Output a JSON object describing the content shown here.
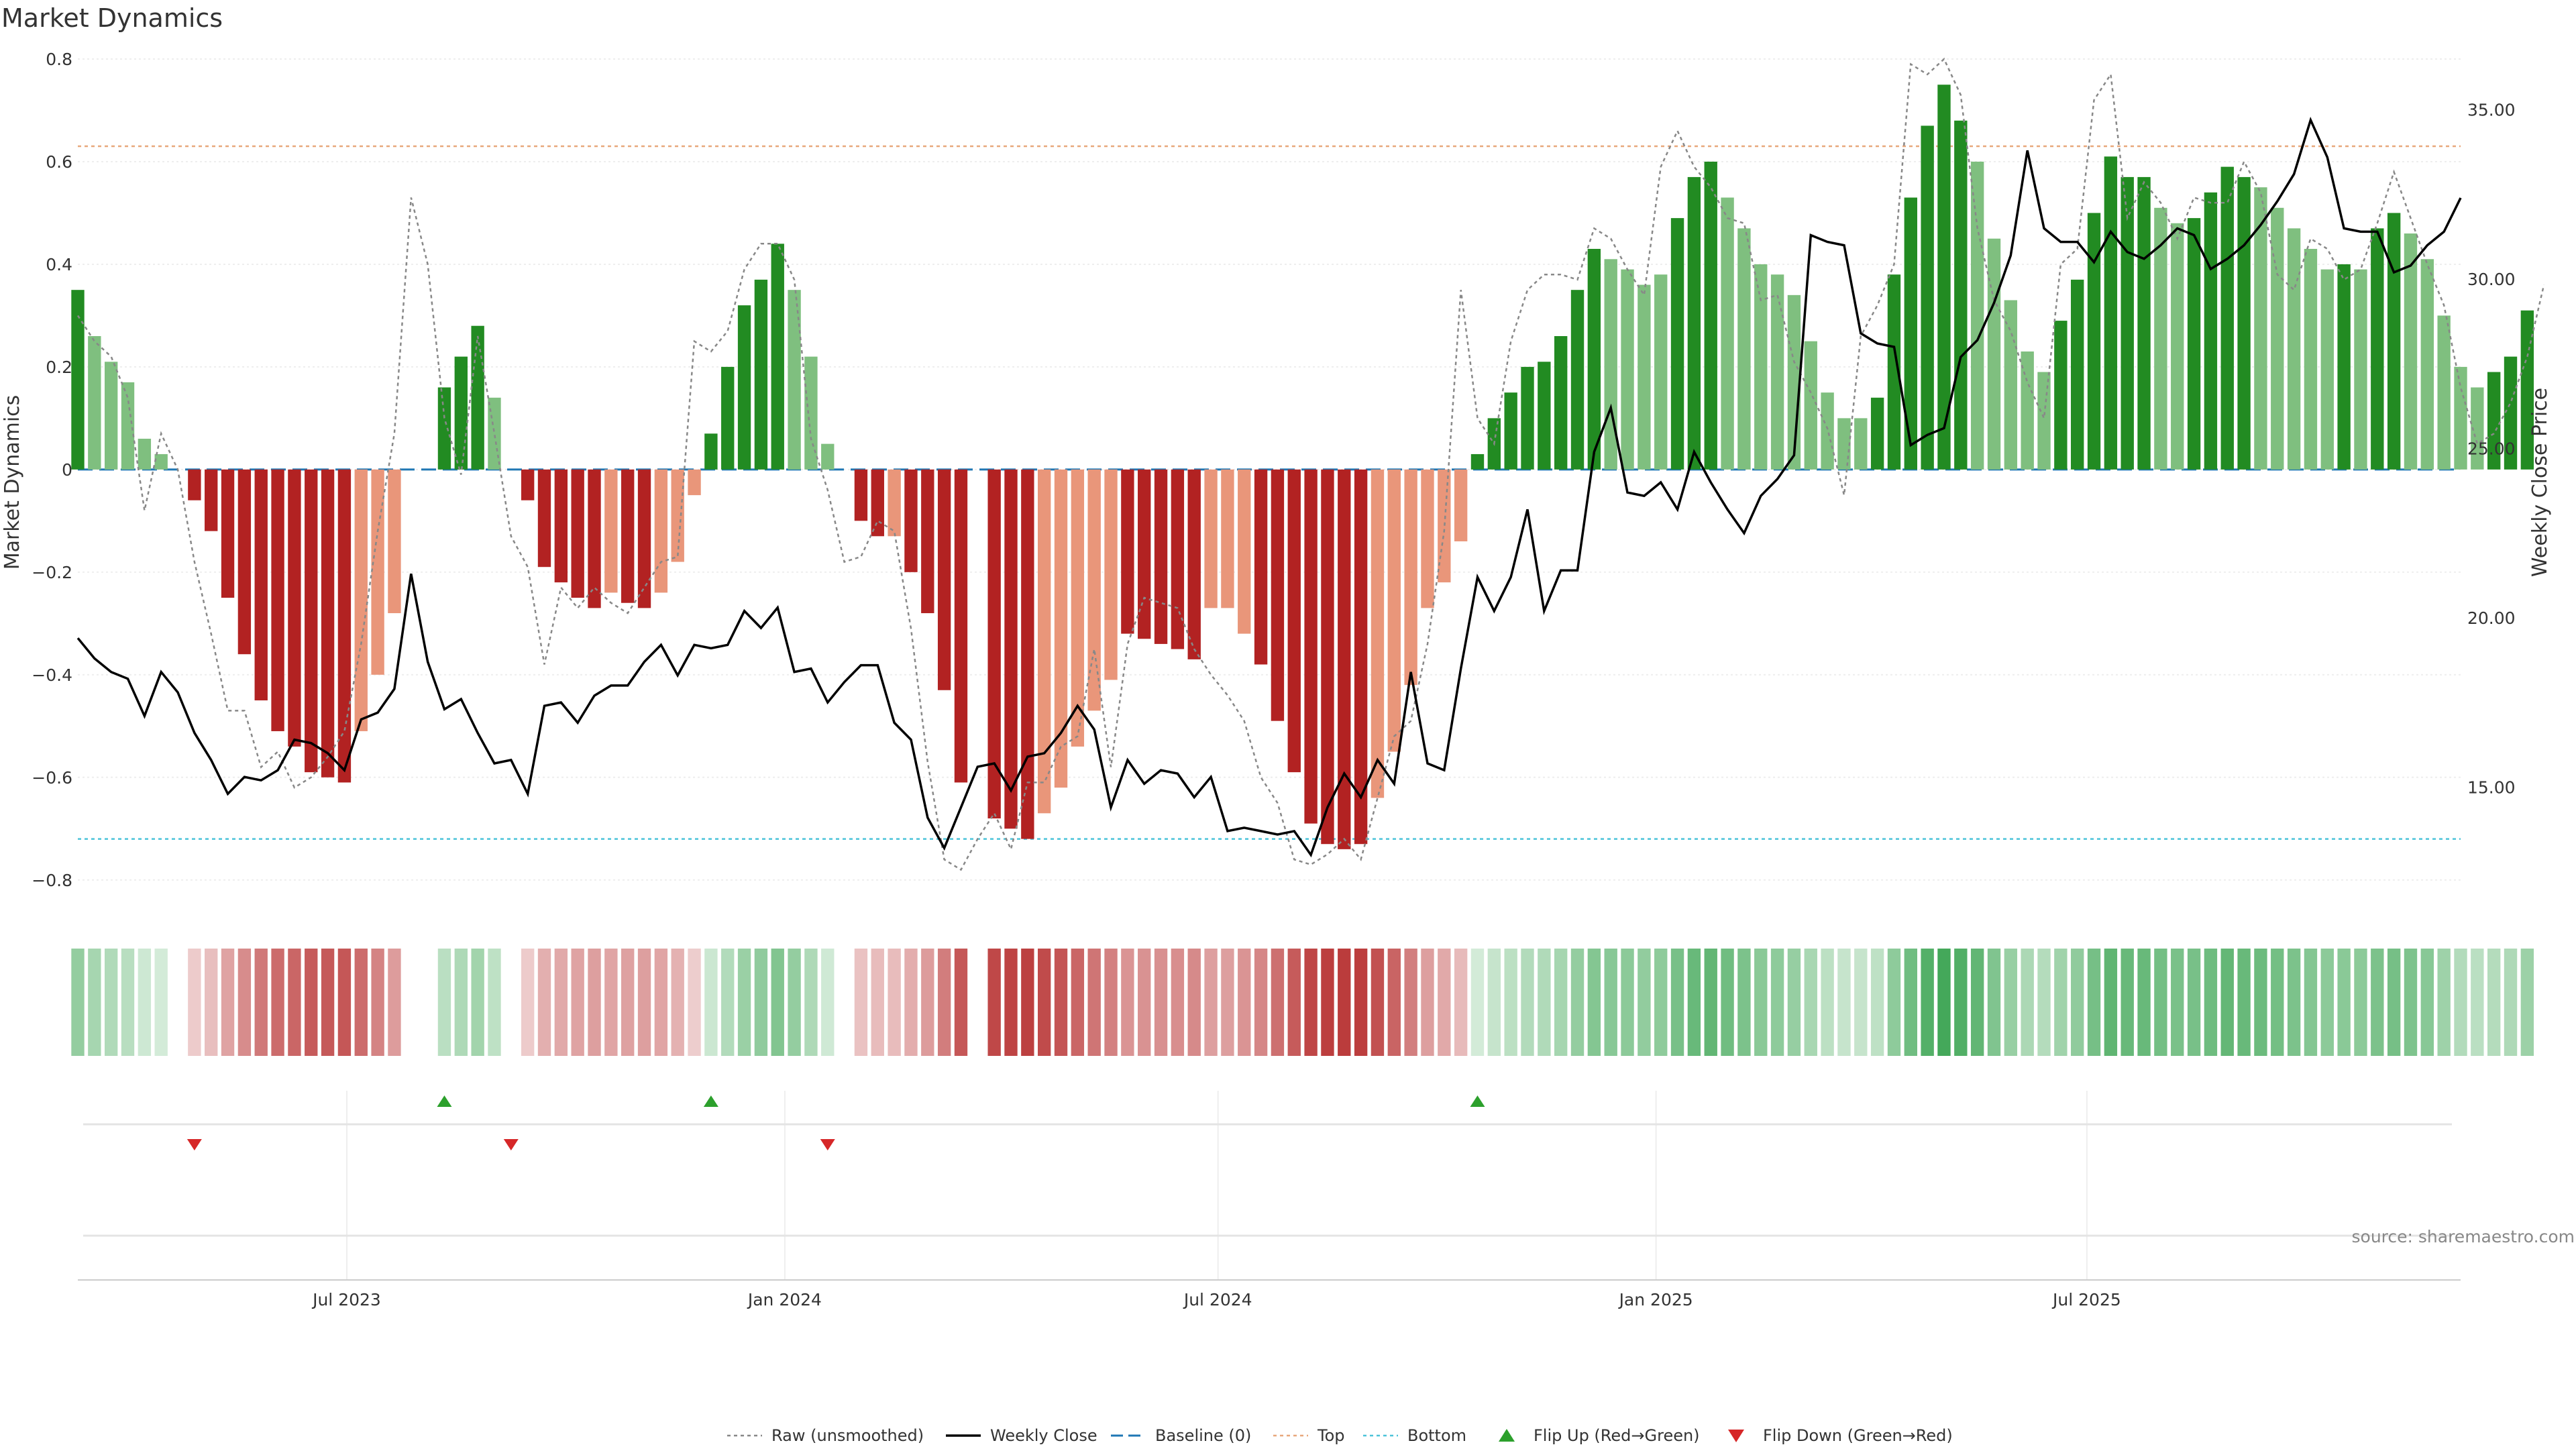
{
  "colors": {
    "green_strong": "#228b22",
    "green_light": "#7fbf7f",
    "red_strong": "#b22222",
    "red_light": "#e9967a",
    "close_line": "#000000",
    "raw_line": "#888888",
    "baseline": "#1f77b4",
    "top_line": "#e8a87c",
    "bottom_line": "#4cc3d9",
    "flip_up": "#2ca02c",
    "flip_down": "#d62728"
  },
  "chart_data": {
    "type": "bar",
    "title": "Market Dynamics",
    "ylabel": "Market Dynamics",
    "ylabel_right": "Weekly Close Price",
    "ylim": [
      -0.85,
      0.8
    ],
    "ylim_right": [
      11.5,
      36.5
    ],
    "yticks": [
      "0.8",
      "0.6",
      "0.4",
      "0.2",
      "0",
      "−0.2",
      "−0.4",
      "−0.6",
      "−0.8"
    ],
    "ytick_values": [
      0.8,
      0.6,
      0.4,
      0.2,
      0,
      -0.2,
      -0.4,
      -0.6,
      -0.8
    ],
    "yticks_right": [
      "35.00",
      "30.00",
      "25.00",
      "20.00",
      "15.00"
    ],
    "ytick_right_values": [
      35,
      30,
      25,
      20,
      15
    ],
    "x_start": "2023-03-10",
    "x_step_days": 7,
    "xticks": [
      {
        "label": "Jul 2023",
        "date": "2023-07-01"
      },
      {
        "label": "Jan 2024",
        "date": "2024-01-01"
      },
      {
        "label": "Jul 2024",
        "date": "2024-07-01"
      },
      {
        "label": "Jan 2025",
        "date": "2025-01-01"
      },
      {
        "label": "Jul 2025",
        "date": "2025-07-01"
      }
    ],
    "x_end": "2025-12-05",
    "top_threshold": 0.63,
    "bottom_threshold": -0.72,
    "baseline": 0,
    "series": [
      {
        "name": "Market Dynamics",
        "values": [
          0.35,
          0.26,
          0.21,
          0.17,
          0.06,
          0.03,
          0,
          -0.06,
          -0.12,
          -0.25,
          -0.36,
          -0.45,
          -0.51,
          -0.54,
          -0.59,
          -0.6,
          -0.61,
          -0.51,
          -0.4,
          -0.28,
          0,
          0,
          0.16,
          0.22,
          0.28,
          0.14,
          0,
          -0.06,
          -0.19,
          -0.22,
          -0.25,
          -0.27,
          -0.24,
          -0.26,
          -0.27,
          -0.24,
          -0.18,
          -0.05,
          0.07,
          0.2,
          0.32,
          0.37,
          0.44,
          0.35,
          0.22,
          0.05,
          0,
          -0.1,
          -0.13,
          -0.13,
          -0.2,
          -0.28,
          -0.43,
          -0.61,
          0,
          -0.68,
          -0.7,
          -0.72,
          -0.67,
          -0.62,
          -0.54,
          -0.47,
          -0.41,
          -0.32,
          -0.33,
          -0.34,
          -0.35,
          -0.37,
          -0.27,
          -0.27,
          -0.32,
          -0.38,
          -0.49,
          -0.59,
          -0.69,
          -0.73,
          -0.74,
          -0.73,
          -0.64,
          -0.55,
          -0.42,
          -0.27,
          -0.22,
          -0.14,
          0.03,
          0.1,
          0.15,
          0.2,
          0.21,
          0.26,
          0.35,
          0.43,
          0.41,
          0.39,
          0.36,
          0.38,
          0.49,
          0.57,
          0.6,
          0.53,
          0.47,
          0.4,
          0.38,
          0.34,
          0.25,
          0.15,
          0.1,
          0.1,
          0.14,
          0.38,
          0.53,
          0.67,
          0.75,
          0.68,
          0.6,
          0.45,
          0.33,
          0.23,
          0.19,
          0.29,
          0.37,
          0.5,
          0.61,
          0.57,
          0.57,
          0.51,
          0.48,
          0.49,
          0.54,
          0.59,
          0.57,
          0.55,
          0.51,
          0.47,
          0.43,
          0.39,
          0.4,
          0.39,
          0.47,
          0.5,
          0.46,
          0.41,
          0.3,
          0.2,
          0.16,
          0.19,
          0.22,
          0.31
        ],
        "strong": [
          1,
          0,
          0,
          0,
          0,
          0,
          0,
          1,
          1,
          1,
          1,
          1,
          1,
          1,
          1,
          1,
          1,
          0,
          0,
          0,
          0,
          0,
          1,
          1,
          1,
          0,
          0,
          1,
          1,
          1,
          1,
          1,
          0,
          1,
          1,
          0,
          0,
          0,
          1,
          1,
          1,
          1,
          1,
          0,
          0,
          0,
          0,
          1,
          1,
          0,
          1,
          1,
          1,
          1,
          0,
          1,
          1,
          1,
          0,
          0,
          0,
          0,
          0,
          1,
          1,
          1,
          1,
          1,
          0,
          0,
          0,
          1,
          1,
          1,
          1,
          1,
          1,
          1,
          0,
          0,
          0,
          0,
          0,
          0,
          1,
          1,
          1,
          1,
          1,
          1,
          1,
          1,
          0,
          0,
          0,
          0,
          1,
          1,
          1,
          0,
          0,
          0,
          0,
          0,
          0,
          0,
          0,
          0,
          1,
          1,
          1,
          1,
          1,
          1,
          0,
          0,
          0,
          0,
          0,
          1,
          1,
          1,
          1,
          1,
          1,
          0,
          0,
          1,
          1,
          1,
          1,
          0,
          0,
          0,
          0,
          0,
          1,
          0,
          1,
          1,
          0,
          0,
          0,
          0,
          0,
          1,
          1,
          1
        ]
      },
      {
        "name": "Weekly Close",
        "values": [
          19.4,
          18.8,
          18.4,
          18.2,
          17.1,
          18.4,
          17.8,
          16.6,
          15.8,
          14.8,
          15.3,
          15.2,
          15.5,
          16.4,
          16.3,
          16.0,
          15.5,
          17.0,
          17.2,
          17.9,
          21.3,
          18.7,
          17.3,
          17.6,
          16.6,
          15.7,
          15.8,
          14.8,
          17.4,
          17.5,
          16.9,
          17.7,
          18.0,
          18.0,
          18.7,
          19.2,
          18.3,
          19.2,
          19.1,
          19.2,
          20.2,
          19.7,
          20.3,
          18.4,
          18.5,
          17.5,
          18.1,
          18.6,
          18.6,
          16.9,
          16.4,
          14.1,
          13.2,
          14.4,
          15.6,
          15.7,
          14.9,
          15.9,
          16.0,
          16.6,
          17.4,
          16.7,
          14.4,
          15.8,
          15.1,
          15.5,
          15.4,
          14.7,
          15.3,
          13.7,
          13.8,
          13.7,
          13.6,
          13.7,
          13.0,
          14.4,
          15.4,
          14.7,
          15.8,
          15.1,
          18.4,
          15.7,
          15.5,
          18.5,
          21.2,
          20.2,
          21.2,
          23.2,
          20.2,
          21.4,
          21.4,
          24.9,
          26.2,
          23.7,
          23.6,
          24.0,
          23.2,
          24.9,
          24.0,
          23.2,
          22.5,
          23.6,
          24.1,
          24.8,
          31.3,
          31.1,
          31.0,
          28.4,
          28.1,
          28.0,
          25.1,
          25.4,
          25.6,
          27.7,
          28.2,
          29.3,
          30.7,
          33.8,
          31.5,
          31.1,
          31.1,
          30.5,
          31.4,
          30.8,
          30.6,
          31.0,
          31.5,
          31.3,
          30.3,
          30.6,
          31.0,
          31.6,
          32.3,
          33.1,
          34.7,
          33.6,
          31.5,
          31.4,
          31.4,
          30.2,
          30.4,
          31.0,
          31.4,
          32.4
        ]
      },
      {
        "name": "Raw (unsmoothed)",
        "values": [
          0.3,
          0.25,
          0.22,
          0.14,
          -0.08,
          0.07,
          0,
          -0.18,
          -0.32,
          -0.47,
          -0.47,
          -0.58,
          -0.55,
          -0.62,
          -0.6,
          -0.56,
          -0.51,
          -0.34,
          -0.12,
          0.07,
          0.53,
          0.4,
          0.1,
          -0.01,
          0.26,
          0.07,
          -0.13,
          -0.19,
          -0.38,
          -0.23,
          -0.27,
          -0.23,
          -0.26,
          -0.28,
          -0.23,
          -0.18,
          -0.17,
          0.25,
          0.23,
          0.27,
          0.39,
          0.44,
          0.44,
          0.37,
          0.06,
          -0.04,
          -0.18,
          -0.17,
          -0.1,
          -0.12,
          -0.31,
          -0.57,
          -0.76,
          -0.78,
          -0.72,
          -0.67,
          -0.74,
          -0.61,
          -0.61,
          -0.54,
          -0.52,
          -0.35,
          -0.58,
          -0.34,
          -0.25,
          -0.26,
          -0.27,
          -0.35,
          -0.4,
          -0.44,
          -0.49,
          -0.6,
          -0.65,
          -0.76,
          -0.77,
          -0.75,
          -0.72,
          -0.76,
          -0.64,
          -0.52,
          -0.49,
          -0.34,
          -0.12,
          0.35,
          0.1,
          0.05,
          0.25,
          0.35,
          0.38,
          0.38,
          0.37,
          0.47,
          0.45,
          0.39,
          0.34,
          0.59,
          0.66,
          0.59,
          0.55,
          0.49,
          0.48,
          0.33,
          0.34,
          0.21,
          0.15,
          0.08,
          -0.05,
          0.26,
          0.32,
          0.4,
          0.79,
          0.77,
          0.8,
          0.73,
          0.47,
          0.33,
          0.27,
          0.17,
          0.1,
          0.4,
          0.43,
          0.72,
          0.77,
          0.49,
          0.56,
          0.52,
          0.45,
          0.53,
          0.52,
          0.52,
          0.6,
          0.54,
          0.38,
          0.35,
          0.45,
          0.43,
          0.37,
          0.39,
          0.48,
          0.58,
          0.49,
          0.4,
          0.32,
          0.16,
          0.05,
          0.07,
          0.13,
          0.22,
          0.36
        ]
      }
    ],
    "flip_up_indices": [
      22,
      38,
      84
    ],
    "flip_down_indices": [
      7,
      26,
      45
    ],
    "legend": [
      {
        "key": "raw",
        "label": "Raw (unsmoothed)"
      },
      {
        "key": "close",
        "label": "Weekly Close"
      },
      {
        "key": "baseline",
        "label": "Baseline (0)"
      },
      {
        "key": "top",
        "label": "Top"
      },
      {
        "key": "bottom",
        "label": "Bottom"
      },
      {
        "key": "flipup",
        "label": "Flip Up (Red→Green)"
      },
      {
        "key": "flipdown",
        "label": "Flip Down (Green→Red)"
      }
    ],
    "legend_position": "bottom"
  },
  "source_text": "source: sharemaestro.com"
}
